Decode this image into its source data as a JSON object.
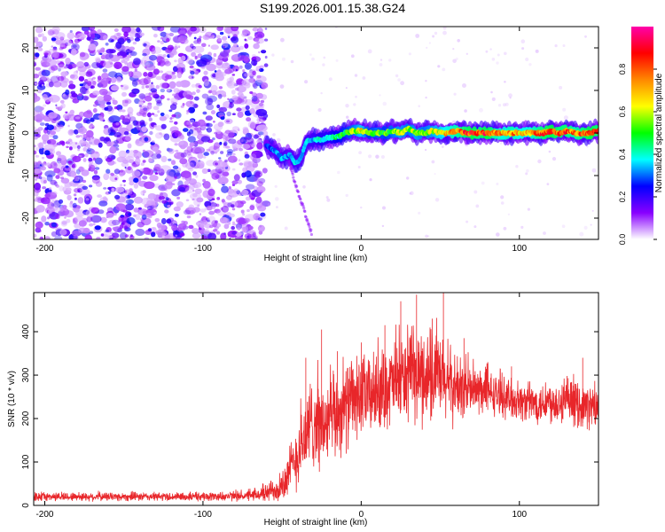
{
  "title": "S199.2026.001.15.38.G24",
  "chart_data": [
    {
      "type": "heatmap",
      "name": "spectrogram",
      "xlabel": "Height of straight line (km)",
      "ylabel": "Frequency (Hz)",
      "xlim": [
        -207,
        150
      ],
      "ylim": [
        -25,
        25
      ],
      "xticks": [
        -200,
        -100,
        0,
        100
      ],
      "yticks": [
        -20,
        -10,
        0,
        10,
        20
      ],
      "colorbar": {
        "label": "Normalized spectral amplitude",
        "range": [
          0,
          1
        ],
        "ticks": [
          0.0,
          0.2,
          0.4,
          0.6,
          0.8
        ],
        "colors": [
          "#ffffff",
          "#8800ff",
          "#0000ff",
          "#00ffff",
          "#00ff00",
          "#ffff00",
          "#ff8800",
          "#ff0000",
          "#ff00aa"
        ]
      },
      "noise_region_x": [
        -207,
        -60
      ],
      "tone_track": {
        "x": [
          -60,
          -55,
          -50,
          -45,
          -42,
          -38,
          -35,
          -30,
          -25,
          -20,
          -15,
          -10,
          -5,
          0,
          5,
          10,
          15,
          20,
          25,
          30,
          35,
          40,
          45,
          50,
          55,
          60,
          65,
          70,
          75,
          80,
          85,
          90,
          95,
          100,
          105,
          110,
          115,
          120,
          125,
          130,
          135,
          140,
          145,
          150
        ],
        "y": [
          -3,
          -4,
          -6,
          -5,
          -7,
          -6,
          -2,
          -1.5,
          -1.5,
          -1,
          -1,
          0,
          0.5,
          0.5,
          0,
          0,
          0,
          0.5,
          0,
          1,
          0,
          0,
          0.5,
          0,
          0,
          0.5,
          0,
          0,
          0,
          0,
          0,
          0,
          0,
          0,
          0,
          0,
          0,
          0.5,
          0,
          0.5,
          0,
          0,
          0,
          0.5
        ],
        "amplitude": [
          0.25,
          0.3,
          0.35,
          0.3,
          0.35,
          0.3,
          0.35,
          0.35,
          0.4,
          0.4,
          0.45,
          0.5,
          0.55,
          0.65,
          0.5,
          0.55,
          0.5,
          0.55,
          0.6,
          0.55,
          0.6,
          0.55,
          0.6,
          0.65,
          0.7,
          0.75,
          0.8,
          0.85,
          0.8,
          0.85,
          0.75,
          0.7,
          0.75,
          0.7,
          0.7,
          0.75,
          0.8,
          0.85,
          0.8,
          0.8,
          0.75,
          0.8,
          0.85,
          0.8
        ]
      }
    },
    {
      "type": "line",
      "name": "snr",
      "xlabel": "Height of straight line (km)",
      "ylabel": "SNR (10 * v/v)",
      "xlim": [
        -207,
        150
      ],
      "ylim": [
        0,
        490
      ],
      "xticks": [
        -200,
        -100,
        0,
        100
      ],
      "yticks": [
        0,
        100,
        200,
        300,
        400
      ],
      "line_color": "#e8262a",
      "envelope": {
        "x": [
          -207,
          -150,
          -100,
          -70,
          -60,
          -50,
          -45,
          -40,
          -35,
          -30,
          -25,
          -20,
          -10,
          0,
          10,
          20,
          30,
          40,
          50,
          60,
          70,
          80,
          90,
          100,
          110,
          120,
          130,
          140,
          150
        ],
        "mean": [
          20,
          20,
          20,
          22,
          28,
          45,
          80,
          120,
          160,
          200,
          180,
          190,
          230,
          250,
          260,
          280,
          295,
          300,
          290,
          270,
          265,
          260,
          250,
          240,
          235,
          240,
          235,
          230,
          225
        ],
        "spread": [
          10,
          10,
          10,
          12,
          20,
          40,
          60,
          80,
          100,
          110,
          100,
          100,
          100,
          95,
          90,
          95,
          100,
          110,
          100,
          80,
          60,
          50,
          45,
          45,
          45,
          50,
          50,
          50,
          50
        ]
      },
      "peaks": [
        [
          -35,
          340
        ],
        [
          -25,
          405
        ],
        [
          -15,
          355
        ],
        [
          0,
          375
        ],
        [
          15,
          415
        ],
        [
          25,
          470
        ],
        [
          35,
          485
        ],
        [
          45,
          430
        ],
        [
          52,
          490
        ],
        [
          65,
          385
        ],
        [
          80,
          330
        ],
        [
          95,
          320
        ],
        [
          140,
          340
        ]
      ]
    }
  ]
}
